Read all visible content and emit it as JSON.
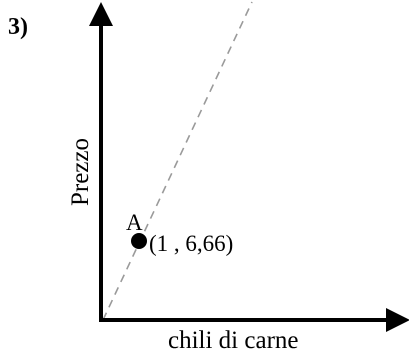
{
  "problem_number": "3)",
  "y_axis_label": "Prezzo",
  "x_axis_label": "chili di carne",
  "point": {
    "name": "A",
    "coordinates": "(1 , 6,66)"
  },
  "colors": {
    "axes": "#000000",
    "dashed_line": "#9a9a9a",
    "point": "#000000"
  }
}
